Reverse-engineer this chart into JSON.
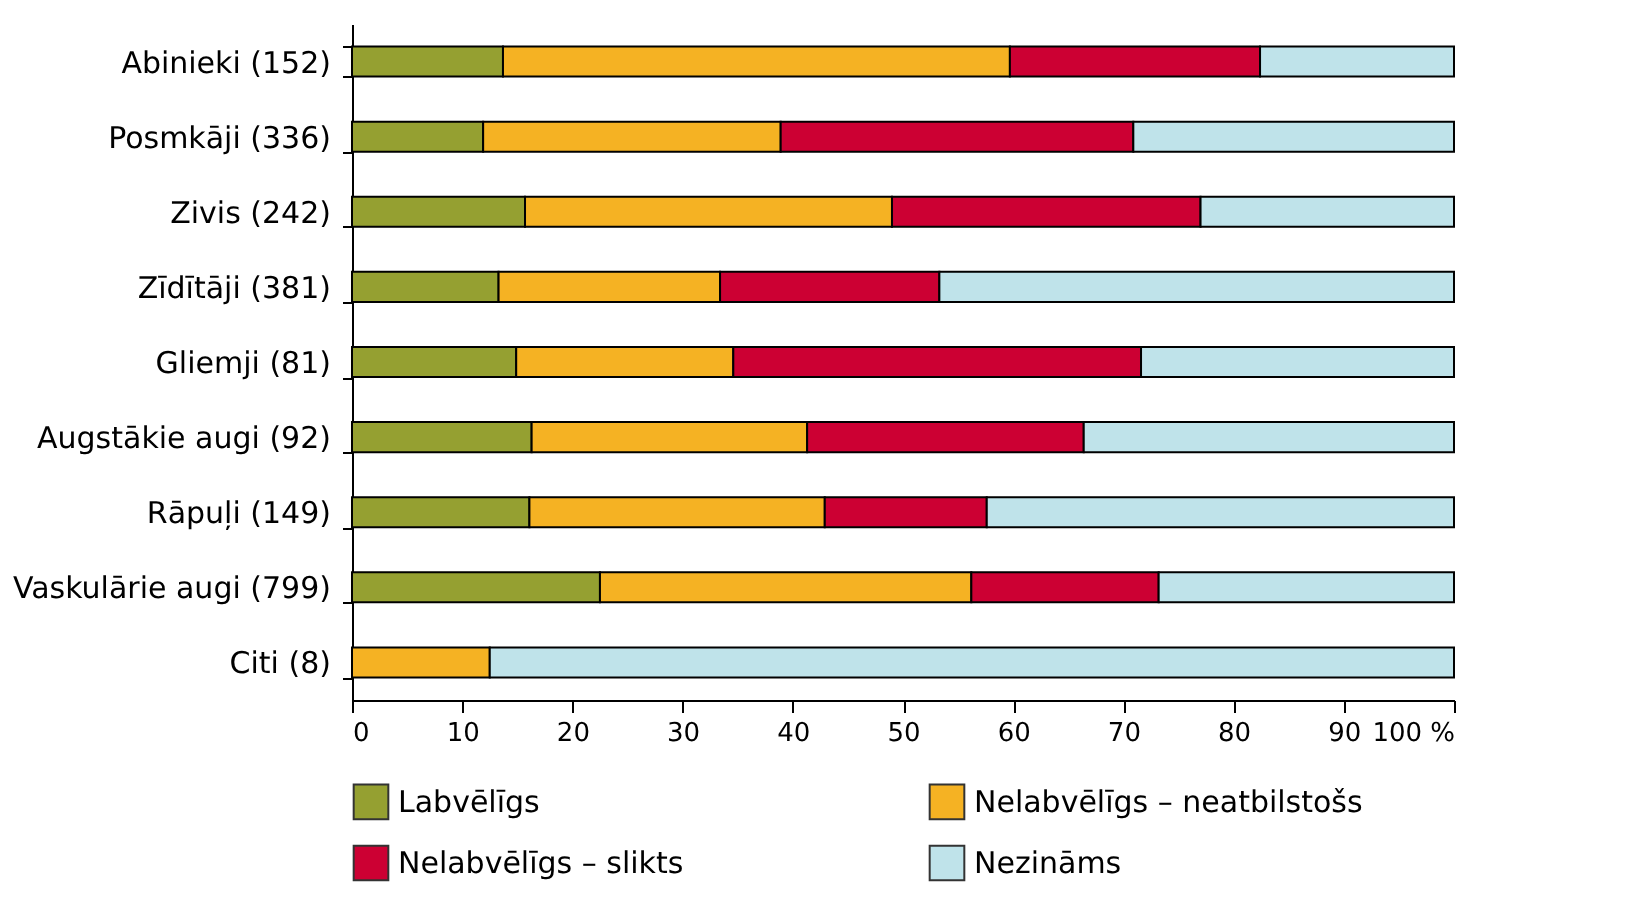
{
  "chart_data": {
    "type": "bar",
    "orientation": "horizontal",
    "stacked": true,
    "categories": [
      "Abinieki (152)",
      "Posmkāji (336)",
      "Zivis (242)",
      "Zīdītāji (381)",
      "Gliemji (81)",
      "Augstākie augi  (92)",
      "Rāpuļi (149)",
      "Vaskulārie augi (799)",
      "Citi (8)"
    ],
    "series": [
      {
        "name": "Labvēlīgs",
        "color": "#95a031",
        "values": [
          13.7,
          11.9,
          15.7,
          13.3,
          14.9,
          16.3,
          16.1,
          22.5,
          0
        ]
      },
      {
        "name": "Nelabvēlīgs – neatbilstošs",
        "color": "#f5b223",
        "values": [
          46.0,
          27.0,
          33.3,
          20.1,
          19.7,
          25.0,
          26.8,
          33.7,
          12.5
        ]
      },
      {
        "name": "Nelabvēlīgs – slikts",
        "color": "#cc0033",
        "values": [
          22.7,
          32.0,
          28.0,
          19.9,
          37.0,
          25.1,
          14.7,
          17.0,
          0
        ]
      },
      {
        "name": "Nezināms",
        "color": "#bfe3ea",
        "values": [
          17.6,
          29.1,
          23.0,
          46.7,
          28.4,
          33.6,
          42.4,
          26.8,
          87.5
        ]
      }
    ],
    "xlim": [
      0,
      100
    ],
    "xticks": [
      0,
      10,
      20,
      30,
      40,
      50,
      60,
      70,
      80,
      90,
      {
        "value": 100,
        "label": "100 %"
      }
    ],
    "grid": false,
    "legend": "bottom"
  }
}
